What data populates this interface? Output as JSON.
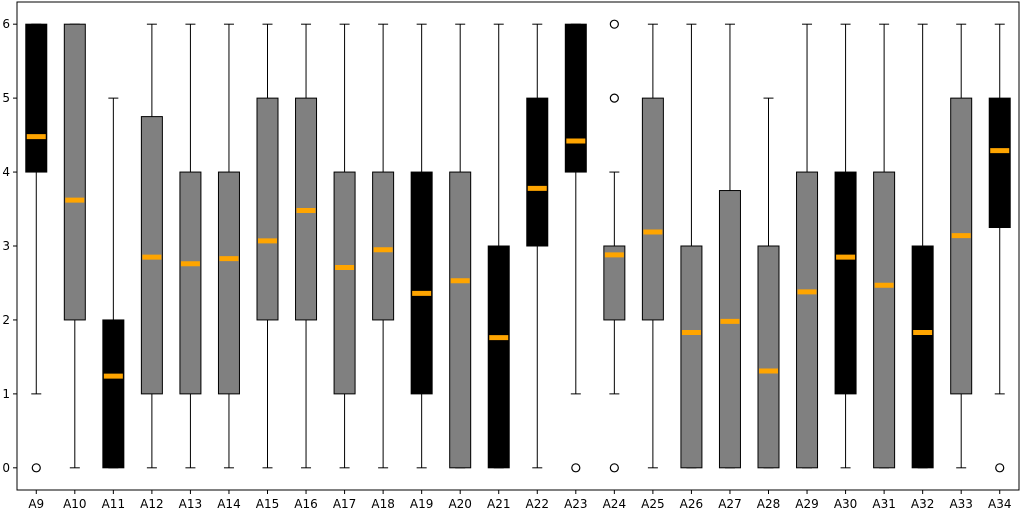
{
  "chart_data": {
    "type": "box",
    "title": "",
    "xlabel": "",
    "ylabel": "",
    "ylim": [
      -0.3,
      6.3
    ],
    "yticks": [
      0,
      1,
      2,
      3,
      4,
      5,
      6
    ],
    "grid": false,
    "median_color": "#FFA500",
    "box_colors": {
      "black": "#000000",
      "gray": "#808080"
    },
    "series": [
      {
        "label": "A9",
        "color": "black",
        "whisker_low": 1,
        "q1": 4,
        "median": 4.48,
        "q3": 6,
        "whisker_high": 6,
        "outliers": [
          0
        ]
      },
      {
        "label": "A10",
        "color": "gray",
        "whisker_low": 0,
        "q1": 2,
        "median": 3.62,
        "q3": 6,
        "whisker_high": 6,
        "outliers": []
      },
      {
        "label": "A11",
        "color": "black",
        "whisker_low": 0,
        "q1": 0,
        "median": 1.24,
        "q3": 2,
        "whisker_high": 5,
        "outliers": []
      },
      {
        "label": "A12",
        "color": "gray",
        "whisker_low": 0,
        "q1": 1,
        "median": 2.85,
        "q3": 4.75,
        "whisker_high": 6,
        "outliers": []
      },
      {
        "label": "A13",
        "color": "gray",
        "whisker_low": 0,
        "q1": 1,
        "median": 2.76,
        "q3": 4,
        "whisker_high": 6,
        "outliers": []
      },
      {
        "label": "A14",
        "color": "gray",
        "whisker_low": 0,
        "q1": 1,
        "median": 2.83,
        "q3": 4,
        "whisker_high": 6,
        "outliers": []
      },
      {
        "label": "A15",
        "color": "gray",
        "whisker_low": 0,
        "q1": 2,
        "median": 3.07,
        "q3": 5,
        "whisker_high": 6,
        "outliers": []
      },
      {
        "label": "A16",
        "color": "gray",
        "whisker_low": 0,
        "q1": 2,
        "median": 3.48,
        "q3": 5,
        "whisker_high": 6,
        "outliers": []
      },
      {
        "label": "A17",
        "color": "gray",
        "whisker_low": 0,
        "q1": 1,
        "median": 2.71,
        "q3": 4,
        "whisker_high": 6,
        "outliers": []
      },
      {
        "label": "A18",
        "color": "gray",
        "whisker_low": 0,
        "q1": 2,
        "median": 2.95,
        "q3": 4,
        "whisker_high": 6,
        "outliers": []
      },
      {
        "label": "A19",
        "color": "black",
        "whisker_low": 0,
        "q1": 1,
        "median": 2.36,
        "q3": 4,
        "whisker_high": 6,
        "outliers": []
      },
      {
        "label": "A20",
        "color": "gray",
        "whisker_low": 0,
        "q1": 0,
        "median": 2.53,
        "q3": 4,
        "whisker_high": 6,
        "outliers": []
      },
      {
        "label": "A21",
        "color": "black",
        "whisker_low": 0,
        "q1": 0,
        "median": 1.76,
        "q3": 3,
        "whisker_high": 6,
        "outliers": []
      },
      {
        "label": "A22",
        "color": "black",
        "whisker_low": 0,
        "q1": 3,
        "median": 3.78,
        "q3": 5,
        "whisker_high": 6,
        "outliers": []
      },
      {
        "label": "A23",
        "color": "black",
        "whisker_low": 1,
        "q1": 4,
        "median": 4.42,
        "q3": 6,
        "whisker_high": 6,
        "outliers": [
          0
        ]
      },
      {
        "label": "A24",
        "color": "gray",
        "whisker_low": 1,
        "q1": 2,
        "median": 2.88,
        "q3": 3,
        "whisker_high": 4,
        "outliers": [
          0,
          5,
          6
        ]
      },
      {
        "label": "A25",
        "color": "gray",
        "whisker_low": 0,
        "q1": 2,
        "median": 3.19,
        "q3": 5,
        "whisker_high": 6,
        "outliers": []
      },
      {
        "label": "A26",
        "color": "gray",
        "whisker_low": 0,
        "q1": 0,
        "median": 1.83,
        "q3": 3,
        "whisker_high": 6,
        "outliers": []
      },
      {
        "label": "A27",
        "color": "gray",
        "whisker_low": 0,
        "q1": 0,
        "median": 1.98,
        "q3": 3.75,
        "whisker_high": 6,
        "outliers": []
      },
      {
        "label": "A28",
        "color": "gray",
        "whisker_low": 0,
        "q1": 0,
        "median": 1.31,
        "q3": 3,
        "whisker_high": 5,
        "outliers": []
      },
      {
        "label": "A29",
        "color": "gray",
        "whisker_low": 0,
        "q1": 0,
        "median": 2.38,
        "q3": 4,
        "whisker_high": 6,
        "outliers": []
      },
      {
        "label": "A30",
        "color": "black",
        "whisker_low": 0,
        "q1": 1,
        "median": 2.85,
        "q3": 4,
        "whisker_high": 6,
        "outliers": []
      },
      {
        "label": "A31",
        "color": "gray",
        "whisker_low": 0,
        "q1": 0,
        "median": 2.47,
        "q3": 4,
        "whisker_high": 6,
        "outliers": []
      },
      {
        "label": "A32",
        "color": "black",
        "whisker_low": 0,
        "q1": 0,
        "median": 1.83,
        "q3": 3,
        "whisker_high": 6,
        "outliers": []
      },
      {
        "label": "A33",
        "color": "gray",
        "whisker_low": 0,
        "q1": 1,
        "median": 3.14,
        "q3": 5,
        "whisker_high": 6,
        "outliers": []
      },
      {
        "label": "A34",
        "color": "black",
        "whisker_low": 1,
        "q1": 3.25,
        "median": 4.29,
        "q3": 5,
        "whisker_high": 6,
        "outliers": [
          0
        ]
      }
    ]
  }
}
